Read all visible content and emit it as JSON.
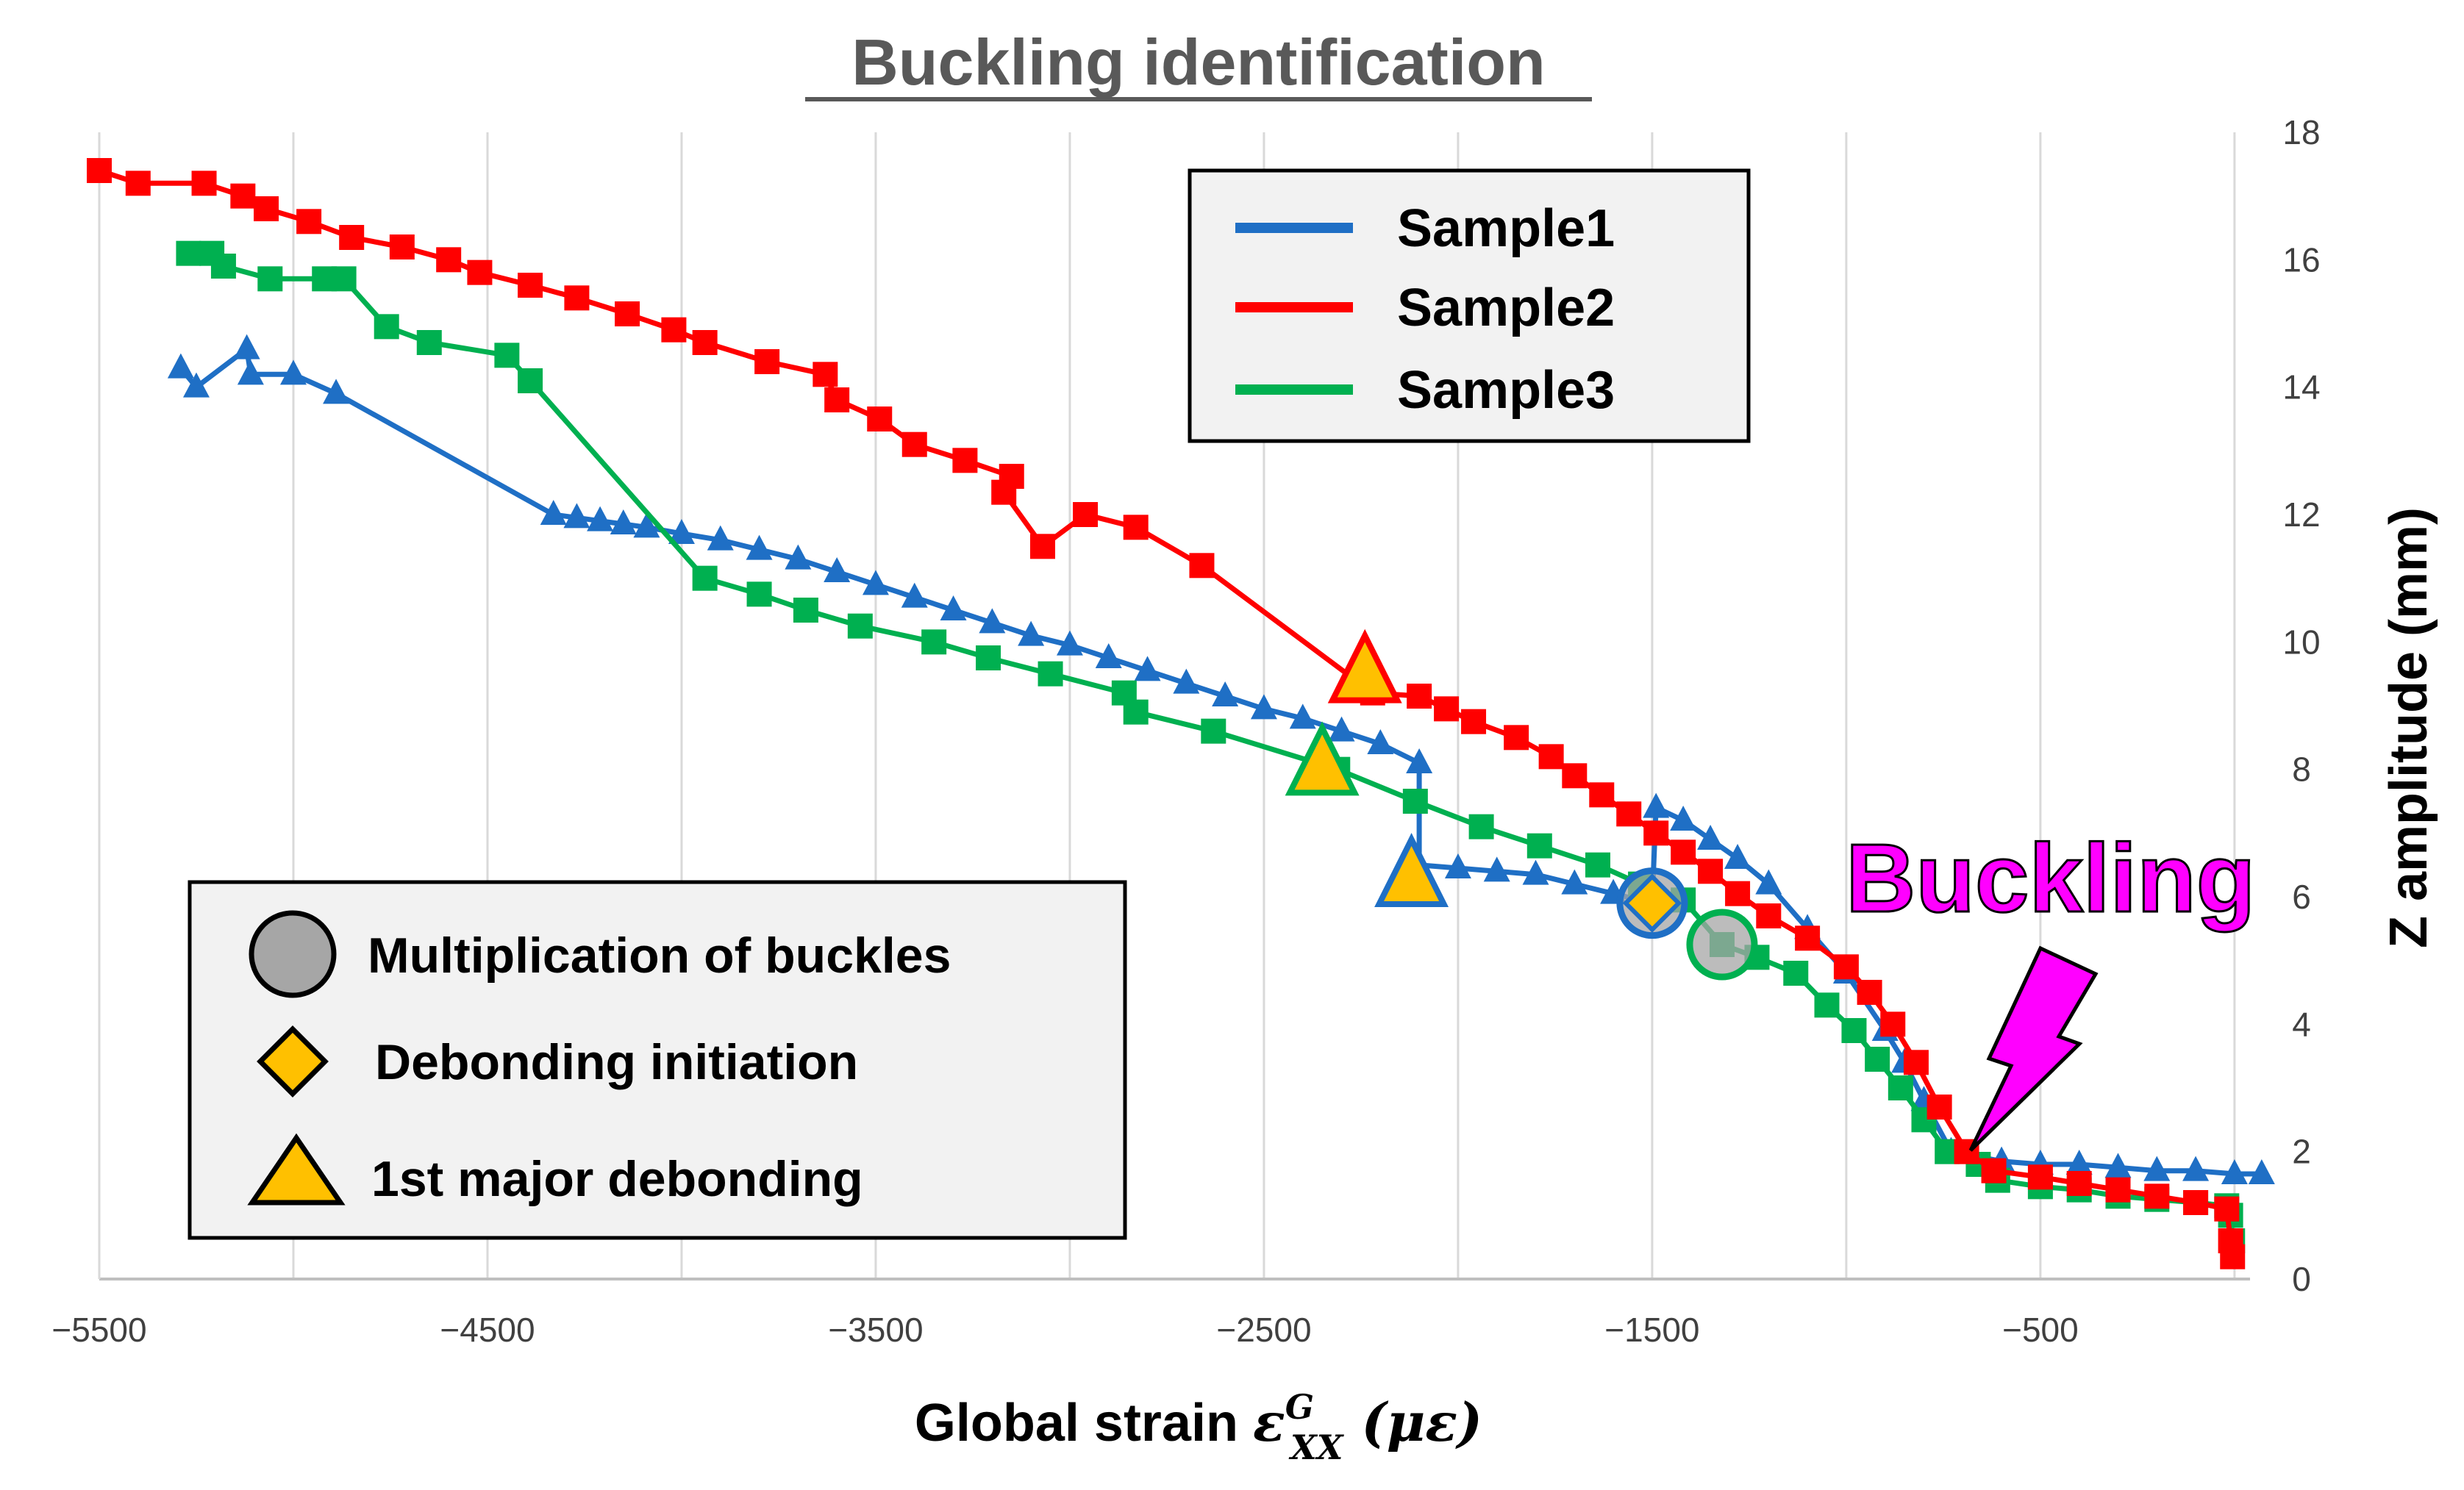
{
  "chart_data": {
    "type": "line",
    "title": "Buckling identification",
    "xlabel_prefix": "Global strain ",
    "xlabel_symbol": "ε",
    "xlabel_superscript": "G",
    "xlabel_subscript": "XX",
    "xlabel_unit": " (με)",
    "ylabel": "Z amplitude (mm)",
    "xlim": [
      -5500,
      0
    ],
    "ylim": [
      0,
      18
    ],
    "xticks": [
      -5500,
      -4500,
      -3500,
      -2500,
      -1500,
      -500
    ],
    "yticks": [
      0,
      2,
      4,
      6,
      8,
      10,
      12,
      14,
      16,
      18
    ],
    "grid": "vertical",
    "series": [
      {
        "name": "Sample1",
        "color": "#1f6fc5",
        "marker": "triangle",
        "points": [
          [
            -5290,
            14.3
          ],
          [
            -5250,
            14.0
          ],
          [
            -5120,
            14.6
          ],
          [
            -5110,
            14.2
          ],
          [
            -5000,
            14.2
          ],
          [
            -4890,
            13.9
          ],
          [
            -4330,
            12.0
          ],
          [
            -4270,
            11.95
          ],
          [
            -4210,
            11.9
          ],
          [
            -4150,
            11.85
          ],
          [
            -4090,
            11.8
          ],
          [
            -4000,
            11.7
          ],
          [
            -3900,
            11.6
          ],
          [
            -3800,
            11.45
          ],
          [
            -3700,
            11.3
          ],
          [
            -3600,
            11.1
          ],
          [
            -3500,
            10.9
          ],
          [
            -3400,
            10.7
          ],
          [
            -3300,
            10.5
          ],
          [
            -3200,
            10.3
          ],
          [
            -3100,
            10.1
          ],
          [
            -3000,
            9.95
          ],
          [
            -2900,
            9.75
          ],
          [
            -2800,
            9.55
          ],
          [
            -2700,
            9.35
          ],
          [
            -2600,
            9.15
          ],
          [
            -2500,
            8.95
          ],
          [
            -2400,
            8.8
          ],
          [
            -2300,
            8.6
          ],
          [
            -2200,
            8.4
          ],
          [
            -2100,
            8.1
          ],
          [
            -2100,
            6.5
          ],
          [
            -2000,
            6.45
          ],
          [
            -1900,
            6.4
          ],
          [
            -1800,
            6.35
          ],
          [
            -1700,
            6.2
          ],
          [
            -1600,
            6.05
          ],
          [
            -1500,
            5.9
          ],
          [
            -1490,
            7.4
          ],
          [
            -1420,
            7.2
          ],
          [
            -1350,
            6.9
          ],
          [
            -1280,
            6.6
          ],
          [
            -1200,
            6.2
          ],
          [
            -1100,
            5.5
          ],
          [
            -1000,
            4.8
          ],
          [
            -900,
            3.9
          ],
          [
            -850,
            3.4
          ],
          [
            -800,
            2.8
          ],
          [
            -730,
            2.0
          ],
          [
            -600,
            1.85
          ],
          [
            -500,
            1.8
          ],
          [
            -400,
            1.8
          ],
          [
            -300,
            1.75
          ],
          [
            -200,
            1.7
          ],
          [
            -100,
            1.7
          ],
          [
            0,
            1.65
          ],
          [
            70,
            1.65
          ]
        ]
      },
      {
        "name": "Sample2",
        "color": "#ff0000",
        "marker": "square",
        "points": [
          [
            -5500,
            17.4
          ],
          [
            -5400,
            17.2
          ],
          [
            -5230,
            17.2
          ],
          [
            -5130,
            17.0
          ],
          [
            -5070,
            16.8
          ],
          [
            -4960,
            16.6
          ],
          [
            -4850,
            16.35
          ],
          [
            -4720,
            16.2
          ],
          [
            -4600,
            16.0
          ],
          [
            -4520,
            15.8
          ],
          [
            -4390,
            15.6
          ],
          [
            -4270,
            15.4
          ],
          [
            -4140,
            15.15
          ],
          [
            -4020,
            14.9
          ],
          [
            -3940,
            14.7
          ],
          [
            -3780,
            14.4
          ],
          [
            -3630,
            14.2
          ],
          [
            -3600,
            13.8
          ],
          [
            -3490,
            13.5
          ],
          [
            -3400,
            13.1
          ],
          [
            -3270,
            12.85
          ],
          [
            -3150,
            12.6
          ],
          [
            -3170,
            12.35
          ],
          [
            -3070,
            11.5
          ],
          [
            -2960,
            12.0
          ],
          [
            -2830,
            11.8
          ],
          [
            -2660,
            11.2
          ],
          [
            -2220,
            9.2
          ],
          [
            -2100,
            9.15
          ],
          [
            -2030,
            8.95
          ],
          [
            -1960,
            8.75
          ],
          [
            -1850,
            8.5
          ],
          [
            -1760,
            8.2
          ],
          [
            -1700,
            7.9
          ],
          [
            -1630,
            7.6
          ],
          [
            -1560,
            7.3
          ],
          [
            -1490,
            7.0
          ],
          [
            -1420,
            6.7
          ],
          [
            -1350,
            6.4
          ],
          [
            -1280,
            6.05
          ],
          [
            -1200,
            5.7
          ],
          [
            -1100,
            5.35
          ],
          [
            -1000,
            4.9
          ],
          [
            -940,
            4.5
          ],
          [
            -880,
            4.0
          ],
          [
            -820,
            3.4
          ],
          [
            -760,
            2.7
          ],
          [
            -690,
            2.0
          ],
          [
            -620,
            1.7
          ],
          [
            -500,
            1.6
          ],
          [
            -400,
            1.5
          ],
          [
            -300,
            1.4
          ],
          [
            -200,
            1.3
          ],
          [
            -100,
            1.2
          ],
          [
            -20,
            1.1
          ],
          [
            -10,
            0.6
          ],
          [
            -5,
            0.35
          ]
        ]
      },
      {
        "name": "Sample3",
        "color": "#00b050",
        "marker": "square",
        "points": [
          [
            -5270,
            16.1
          ],
          [
            -5210,
            16.1
          ],
          [
            -5180,
            15.9
          ],
          [
            -5060,
            15.7
          ],
          [
            -4920,
            15.7
          ],
          [
            -4870,
            15.7
          ],
          [
            -4760,
            14.95
          ],
          [
            -4650,
            14.7
          ],
          [
            -4450,
            14.5
          ],
          [
            -4390,
            14.1
          ],
          [
            -3940,
            11.0
          ],
          [
            -3800,
            10.75
          ],
          [
            -3680,
            10.5
          ],
          [
            -3540,
            10.25
          ],
          [
            -3350,
            10.0
          ],
          [
            -3210,
            9.75
          ],
          [
            -3050,
            9.5
          ],
          [
            -2860,
            9.2
          ],
          [
            -2830,
            8.9
          ],
          [
            -2630,
            8.6
          ],
          [
            -2310,
            8.0
          ],
          [
            -2110,
            7.5
          ],
          [
            -1940,
            7.1
          ],
          [
            -1790,
            6.8
          ],
          [
            -1640,
            6.5
          ],
          [
            -1530,
            6.2
          ],
          [
            -1420,
            5.95
          ],
          [
            -1320,
            5.25
          ],
          [
            -1230,
            5.05
          ],
          [
            -1130,
            4.8
          ],
          [
            -1050,
            4.3
          ],
          [
            -980,
            3.9
          ],
          [
            -920,
            3.45
          ],
          [
            -860,
            3.0
          ],
          [
            -800,
            2.5
          ],
          [
            -740,
            2.0
          ],
          [
            -660,
            1.8
          ],
          [
            -610,
            1.55
          ],
          [
            -500,
            1.45
          ],
          [
            -400,
            1.4
          ],
          [
            -300,
            1.3
          ],
          [
            -200,
            1.25
          ],
          [
            -100,
            1.2
          ],
          [
            -20,
            1.15
          ],
          [
            -10,
            1.0
          ],
          [
            -5,
            0.6
          ]
        ]
      }
    ],
    "event_markers": [
      {
        "type": "circle",
        "series": "Sample1",
        "x": -1500,
        "y": 5.9,
        "label": "Multiplication of buckles"
      },
      {
        "type": "circle",
        "series": "Sample3",
        "x": -1320,
        "y": 5.25,
        "label": "Multiplication of buckles"
      },
      {
        "type": "diamond",
        "series": "Sample1",
        "x": -1500,
        "y": 5.9,
        "label": "Debonding initiation"
      },
      {
        "type": "triangle",
        "series": "Sample2",
        "x": -2240,
        "y": 9.5,
        "label": "1st major debonding"
      },
      {
        "type": "triangle",
        "series": "Sample3",
        "x": -2350,
        "y": 8.05,
        "label": "1st major debonding"
      },
      {
        "type": "triangle",
        "series": "Sample1",
        "x": -2120,
        "y": 6.3,
        "label": "1st major debonding"
      }
    ],
    "series_legend": {
      "position": "top-right",
      "entries": [
        "Sample1",
        "Sample2",
        "Sample3"
      ]
    },
    "marker_legend": {
      "position": "bottom-left",
      "entries": [
        {
          "shape": "circle",
          "label": "Multiplication of buckles"
        },
        {
          "shape": "diamond",
          "label": "Debonding initiation"
        },
        {
          "shape": "triangle",
          "label": "1st major debonding"
        }
      ]
    },
    "annotation": {
      "text": "Buckling",
      "x": -750,
      "y": 2.0,
      "color": "#ff00ff"
    }
  }
}
